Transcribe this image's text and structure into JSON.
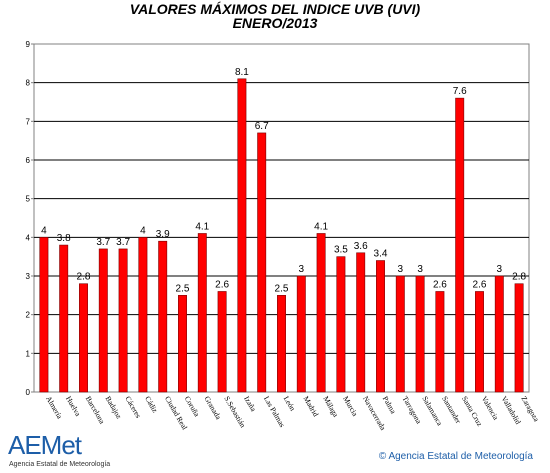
{
  "chart_data": {
    "type": "bar",
    "title": "VALORES MÁXIMOS DEL INDICE UVB (UVI)",
    "subtitle": "ENERO/2013",
    "xlabel": "",
    "ylabel": "",
    "ylim": [
      0,
      9
    ],
    "yticks": [
      0,
      1,
      2,
      3,
      4,
      5,
      6,
      7,
      8,
      9
    ],
    "grid": true,
    "bar_color": "#ff0000",
    "categories": [
      "Almería",
      "Huelva",
      "Barcelona",
      "Badajoz",
      "Cáceres",
      "Cádiz",
      "Ciudad Real",
      "Coruña",
      "Granada",
      "S.Sebastián",
      "Izaña",
      "Las Palmas",
      "León",
      "Madrid",
      "Málaga",
      "Murcia",
      "Navacerrada",
      "Palma",
      "Tarragona",
      "Salamanca",
      "Santander",
      "Santa Cruz",
      "Valencia",
      "Valladolid",
      "Zaragoza"
    ],
    "values": [
      4,
      3.8,
      2.8,
      3.7,
      3.7,
      4,
      3.9,
      2.5,
      4.1,
      2.6,
      8.1,
      6.7,
      2.5,
      3,
      4.1,
      3.5,
      3.6,
      3.4,
      3,
      3,
      2.6,
      7.6,
      2.6,
      3,
      2.8
    ]
  },
  "footer": {
    "logo_text": "AEMet",
    "logo_subtitle": "Agencia Estatal de Meteorología",
    "credit": "© Agencia Estatal de Meteorología"
  }
}
